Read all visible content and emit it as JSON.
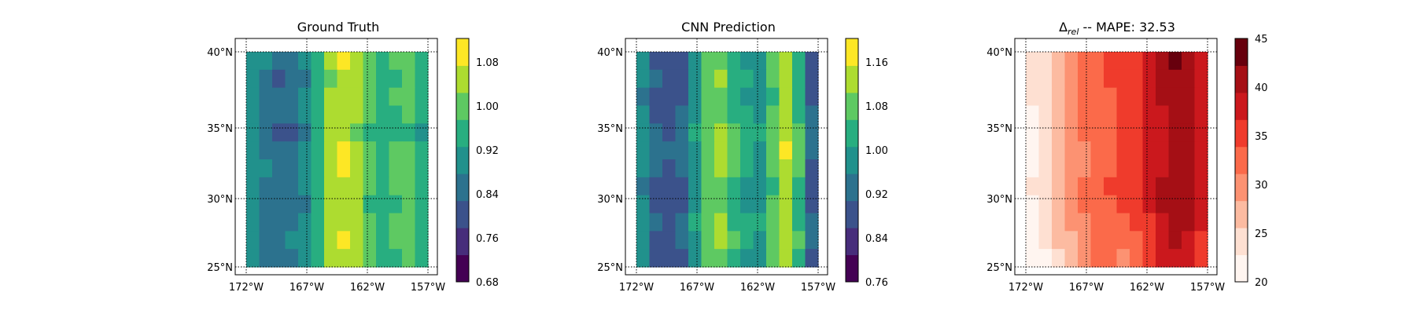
{
  "chart_data": [
    {
      "type": "heatmap",
      "title": "Ground Truth",
      "lon_ticks": [
        "172°W",
        "167°W",
        "162°W",
        "157°W"
      ],
      "lat_ticks": [
        "40°N",
        "35°N",
        "30°N",
        "25°N"
      ],
      "lon_range": [
        -172,
        -157
      ],
      "lat_range": [
        25,
        40
      ],
      "colormap": "viridis",
      "colorbar": {
        "ticks": [
          "0.68",
          "0.76",
          "0.84",
          "0.92",
          "1.00",
          "1.08"
        ],
        "range": [
          0.68,
          1.12
        ]
      },
      "columns": [
        0.89,
        0.86,
        0.83,
        0.84,
        0.88,
        0.95,
        1.03,
        1.06,
        1.03,
        0.98,
        0.95,
        0.97,
        0.99,
        0.93
      ],
      "row_modulation": [
        0.02,
        -0.01,
        0.01,
        0.0,
        -0.02,
        0.02,
        0.03,
        0.01,
        -0.01,
        0.02,
        0.04,
        0.0
      ]
    },
    {
      "type": "heatmap",
      "title": "CNN Prediction",
      "lon_ticks": [
        "172°W",
        "167°W",
        "162°W",
        "157°W"
      ],
      "lat_ticks": [
        "40°N",
        "35°N",
        "30°N",
        "25°N"
      ],
      "lon_range": [
        -172,
        -157
      ],
      "lat_range": [
        25,
        40
      ],
      "colormap": "viridis",
      "colorbar": {
        "ticks": [
          "0.76",
          "0.84",
          "0.92",
          "1.00",
          "1.08",
          "1.16"
        ],
        "range": [
          0.76,
          1.2
        ]
      },
      "columns": [
        0.96,
        0.9,
        0.87,
        0.9,
        0.98,
        1.08,
        1.1,
        1.04,
        1.0,
        0.99,
        1.06,
        1.12,
        1.04,
        0.9
      ],
      "row_modulation": [
        0.0,
        0.02,
        -0.01,
        0.01,
        0.04,
        0.05,
        0.02,
        -0.02,
        0.0,
        0.03,
        0.02,
        -0.01
      ]
    },
    {
      "type": "heatmap",
      "title": "Δrel -- MAPE: 32.53",
      "title_parts": {
        "delta": "Δ",
        "subscript": "rel",
        "rest": " -- MAPE: 32.53"
      },
      "lon_ticks": [
        "172°W",
        "167°W",
        "162°W",
        "157°W"
      ],
      "lat_ticks": [
        "40°N",
        "35°N",
        "30°N",
        "25°N"
      ],
      "lon_range": [
        -172,
        -157
      ],
      "lat_range": [
        25,
        40
      ],
      "colormap": "reds",
      "colorbar": {
        "ticks": [
          "20",
          "25",
          "30",
          "35",
          "40",
          "45"
        ],
        "range": [
          20,
          45
        ]
      },
      "columns": [
        22,
        24,
        27,
        29,
        31,
        32,
        33,
        34,
        35,
        37,
        39,
        41,
        40,
        38
      ],
      "row_modulation": [
        1.5,
        1.2,
        1.0,
        0.8,
        0.5,
        0.0,
        0.5,
        1.2,
        0.6,
        -0.5,
        -2.0,
        -3.0
      ]
    }
  ]
}
